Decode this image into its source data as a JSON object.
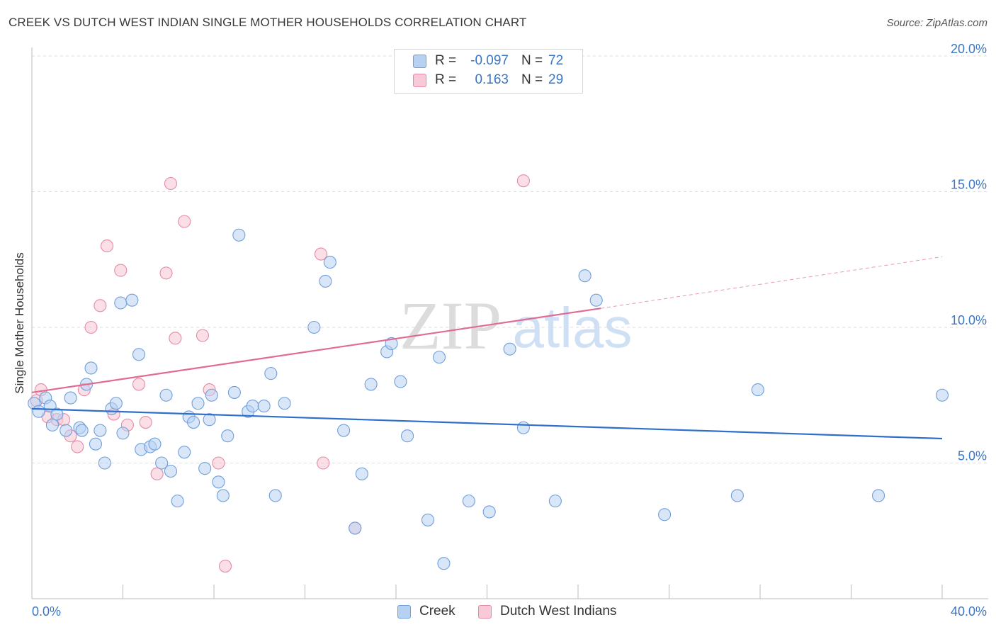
{
  "header": {
    "title": "CREEK VS DUTCH WEST INDIAN SINGLE MOTHER HOUSEHOLDS CORRELATION CHART",
    "source": "Source: ZipAtlas.com"
  },
  "watermark": {
    "zip": "ZIP",
    "atlas": "atlas"
  },
  "legend_top": {
    "rows": [
      {
        "r_label": "R =",
        "r_value": "-0.097",
        "n_label": "N =",
        "n_value": "72"
      },
      {
        "r_label": "R =",
        "r_value": "0.163",
        "n_label": "N =",
        "n_value": "29"
      }
    ]
  },
  "legend_bottom": {
    "creek": "Creek",
    "dutch": "Dutch West Indians"
  },
  "colors": {
    "creek_fill": "#b8d1f3",
    "creek_stroke": "#6f9fdc",
    "creek_line": "#2f6fcc",
    "dutch_fill": "#f8c9d6",
    "dutch_stroke": "#e78aa6",
    "dutch_line": "#e06b93",
    "tick_text": "#3a76c4",
    "grid": "#dcdcdc"
  },
  "chart_data": {
    "type": "scatter",
    "title": "CREEK VS DUTCH WEST INDIAN SINGLE MOTHER HOUSEHOLDS CORRELATION CHART",
    "xlabel": "",
    "ylabel": "Single Mother Households",
    "xlim": [
      0,
      40
    ],
    "ylim": [
      0,
      20
    ],
    "x_tick_labels": [
      "0.0%",
      "40.0%"
    ],
    "y_ticks": [
      5,
      10,
      15,
      20
    ],
    "y_tick_labels": [
      "5.0%",
      "10.0%",
      "15.0%",
      "20.0%"
    ],
    "grid": "horizontal dashed",
    "legend": "bottom",
    "series": [
      {
        "name": "Creek",
        "r": -0.097,
        "n": 72,
        "trend": {
          "x": [
            0,
            40
          ],
          "y": [
            7.0,
            5.9
          ]
        },
        "points": [
          [
            0.1,
            7.2
          ],
          [
            0.3,
            6.9
          ],
          [
            0.6,
            7.4
          ],
          [
            0.8,
            7.1
          ],
          [
            1.1,
            6.8
          ],
          [
            0.9,
            6.4
          ],
          [
            1.5,
            6.2
          ],
          [
            1.7,
            7.4
          ],
          [
            2.1,
            6.3
          ],
          [
            2.2,
            6.2
          ],
          [
            2.4,
            7.9
          ],
          [
            2.6,
            8.5
          ],
          [
            2.8,
            5.7
          ],
          [
            3.0,
            6.2
          ],
          [
            3.2,
            5.0
          ],
          [
            3.5,
            7.0
          ],
          [
            3.7,
            7.2
          ],
          [
            4.0,
            6.1
          ],
          [
            3.9,
            10.9
          ],
          [
            4.4,
            11.0
          ],
          [
            4.7,
            9.0
          ],
          [
            4.8,
            5.5
          ],
          [
            5.2,
            5.6
          ],
          [
            5.4,
            5.7
          ],
          [
            5.7,
            5.0
          ],
          [
            5.9,
            7.5
          ],
          [
            6.1,
            4.7
          ],
          [
            6.4,
            3.6
          ],
          [
            6.7,
            5.4
          ],
          [
            6.9,
            6.7
          ],
          [
            7.1,
            6.5
          ],
          [
            7.3,
            7.2
          ],
          [
            7.6,
            4.8
          ],
          [
            7.8,
            6.6
          ],
          [
            7.9,
            7.5
          ],
          [
            8.2,
            4.3
          ],
          [
            8.4,
            3.8
          ],
          [
            8.6,
            6.0
          ],
          [
            8.9,
            7.6
          ],
          [
            9.1,
            13.4
          ],
          [
            9.5,
            6.9
          ],
          [
            9.7,
            7.1
          ],
          [
            10.2,
            7.1
          ],
          [
            10.5,
            8.3
          ],
          [
            10.7,
            3.8
          ],
          [
            11.1,
            7.2
          ],
          [
            12.4,
            10.0
          ],
          [
            12.9,
            11.7
          ],
          [
            13.1,
            12.4
          ],
          [
            13.7,
            6.2
          ],
          [
            14.2,
            2.6
          ],
          [
            14.5,
            4.6
          ],
          [
            14.9,
            7.9
          ],
          [
            15.6,
            9.1
          ],
          [
            15.8,
            9.4
          ],
          [
            16.2,
            8.0
          ],
          [
            16.5,
            6.0
          ],
          [
            17.4,
            2.9
          ],
          [
            17.9,
            8.9
          ],
          [
            18.1,
            1.3
          ],
          [
            19.2,
            3.6
          ],
          [
            20.1,
            3.2
          ],
          [
            21.0,
            9.2
          ],
          [
            21.6,
            6.3
          ],
          [
            23.0,
            3.6
          ],
          [
            24.3,
            11.9
          ],
          [
            24.8,
            11.0
          ],
          [
            27.8,
            3.1
          ],
          [
            31.0,
            3.8
          ],
          [
            31.9,
            7.7
          ],
          [
            37.2,
            3.8
          ],
          [
            40.0,
            7.5
          ]
        ]
      },
      {
        "name": "Dutch West Indians",
        "r": 0.163,
        "n": 29,
        "trend": {
          "x": [
            0,
            25
          ],
          "y": [
            7.6,
            10.7
          ]
        },
        "trend_dashed": {
          "x": [
            25,
            40
          ],
          "y": [
            10.7,
            12.6
          ]
        },
        "points": [
          [
            0.2,
            7.3
          ],
          [
            0.4,
            7.7
          ],
          [
            0.7,
            6.7
          ],
          [
            1.1,
            6.6
          ],
          [
            1.4,
            6.6
          ],
          [
            1.7,
            6.0
          ],
          [
            2.0,
            5.6
          ],
          [
            2.3,
            7.7
          ],
          [
            2.6,
            10.0
          ],
          [
            3.0,
            10.8
          ],
          [
            3.3,
            13.0
          ],
          [
            3.6,
            6.8
          ],
          [
            3.9,
            12.1
          ],
          [
            4.2,
            6.4
          ],
          [
            4.7,
            7.9
          ],
          [
            5.0,
            6.5
          ],
          [
            5.5,
            4.6
          ],
          [
            5.9,
            12.0
          ],
          [
            6.1,
            15.3
          ],
          [
            6.3,
            9.6
          ],
          [
            6.7,
            13.9
          ],
          [
            7.5,
            9.7
          ],
          [
            7.8,
            7.7
          ],
          [
            8.2,
            5.0
          ],
          [
            8.5,
            1.2
          ],
          [
            12.7,
            12.7
          ],
          [
            12.8,
            5.0
          ],
          [
            14.2,
            2.6
          ],
          [
            21.6,
            15.4
          ]
        ]
      }
    ]
  }
}
